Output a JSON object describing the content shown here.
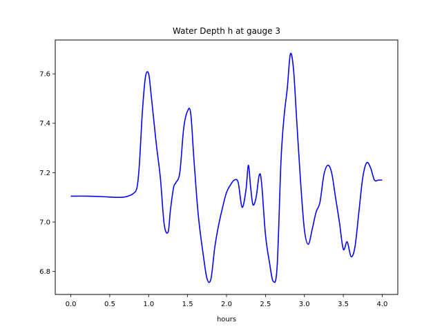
{
  "chart_data": {
    "type": "line",
    "title": "Water Depth h at gauge 3",
    "xlabel": "hours",
    "ylabel": "",
    "xlim": [
      -0.2,
      4.2
    ],
    "ylim": [
      6.707,
      7.737
    ],
    "xticks": [
      0.0,
      0.5,
      1.0,
      1.5,
      2.0,
      2.5,
      3.0,
      3.5,
      4.0
    ],
    "xtick_labels": [
      "0.0",
      "0.5",
      "1.0",
      "1.5",
      "2.0",
      "2.5",
      "3.0",
      "3.5",
      "4.0"
    ],
    "yticks": [
      6.8,
      7.0,
      7.2,
      7.4,
      7.6
    ],
    "ytick_labels": [
      "6.8",
      "7.0",
      "7.2",
      "7.4",
      "7.6"
    ],
    "grid": false,
    "series": [
      {
        "color": "#0000ff",
        "x": [
          0.0,
          0.2,
          0.4,
          0.6,
          0.7,
          0.8,
          0.85,
          0.88,
          0.92,
          0.96,
          1.0,
          1.03,
          1.06,
          1.1,
          1.15,
          1.2,
          1.25,
          1.28,
          1.32,
          1.35,
          1.4,
          1.45,
          1.5,
          1.54,
          1.58,
          1.62,
          1.65,
          1.7,
          1.75,
          1.8,
          1.85,
          1.9,
          1.95,
          2.0,
          2.05,
          2.1,
          2.15,
          2.2,
          2.25,
          2.28,
          2.31,
          2.34,
          2.38,
          2.42,
          2.45,
          2.5,
          2.55,
          2.6,
          2.65,
          2.7,
          2.74,
          2.78,
          2.82,
          2.86,
          2.9,
          2.95,
          3.0,
          3.05,
          3.1,
          3.15,
          3.2,
          3.25,
          3.3,
          3.35,
          3.4,
          3.45,
          3.5,
          3.55,
          3.6,
          3.65,
          3.7,
          3.75,
          3.8,
          3.85,
          3.9,
          3.95,
          4.0
        ],
        "values": [
          7.105,
          7.105,
          7.103,
          7.1,
          7.102,
          7.115,
          7.14,
          7.23,
          7.45,
          7.59,
          7.6,
          7.52,
          7.43,
          7.31,
          7.18,
          6.99,
          6.96,
          7.05,
          7.14,
          7.16,
          7.2,
          7.38,
          7.45,
          7.44,
          7.26,
          7.09,
          6.99,
          6.87,
          6.77,
          6.77,
          6.9,
          6.99,
          7.06,
          7.12,
          7.15,
          7.17,
          7.16,
          7.06,
          7.13,
          7.23,
          7.14,
          7.07,
          7.1,
          7.19,
          7.16,
          6.95,
          6.84,
          6.76,
          6.82,
          7.25,
          7.43,
          7.54,
          7.68,
          7.62,
          7.42,
          7.17,
          6.97,
          6.91,
          6.97,
          7.04,
          7.08,
          7.19,
          7.23,
          7.2,
          7.1,
          7.0,
          6.89,
          6.92,
          6.86,
          6.9,
          7.04,
          7.18,
          7.24,
          7.22,
          7.17,
          7.17,
          7.17
        ]
      }
    ]
  }
}
